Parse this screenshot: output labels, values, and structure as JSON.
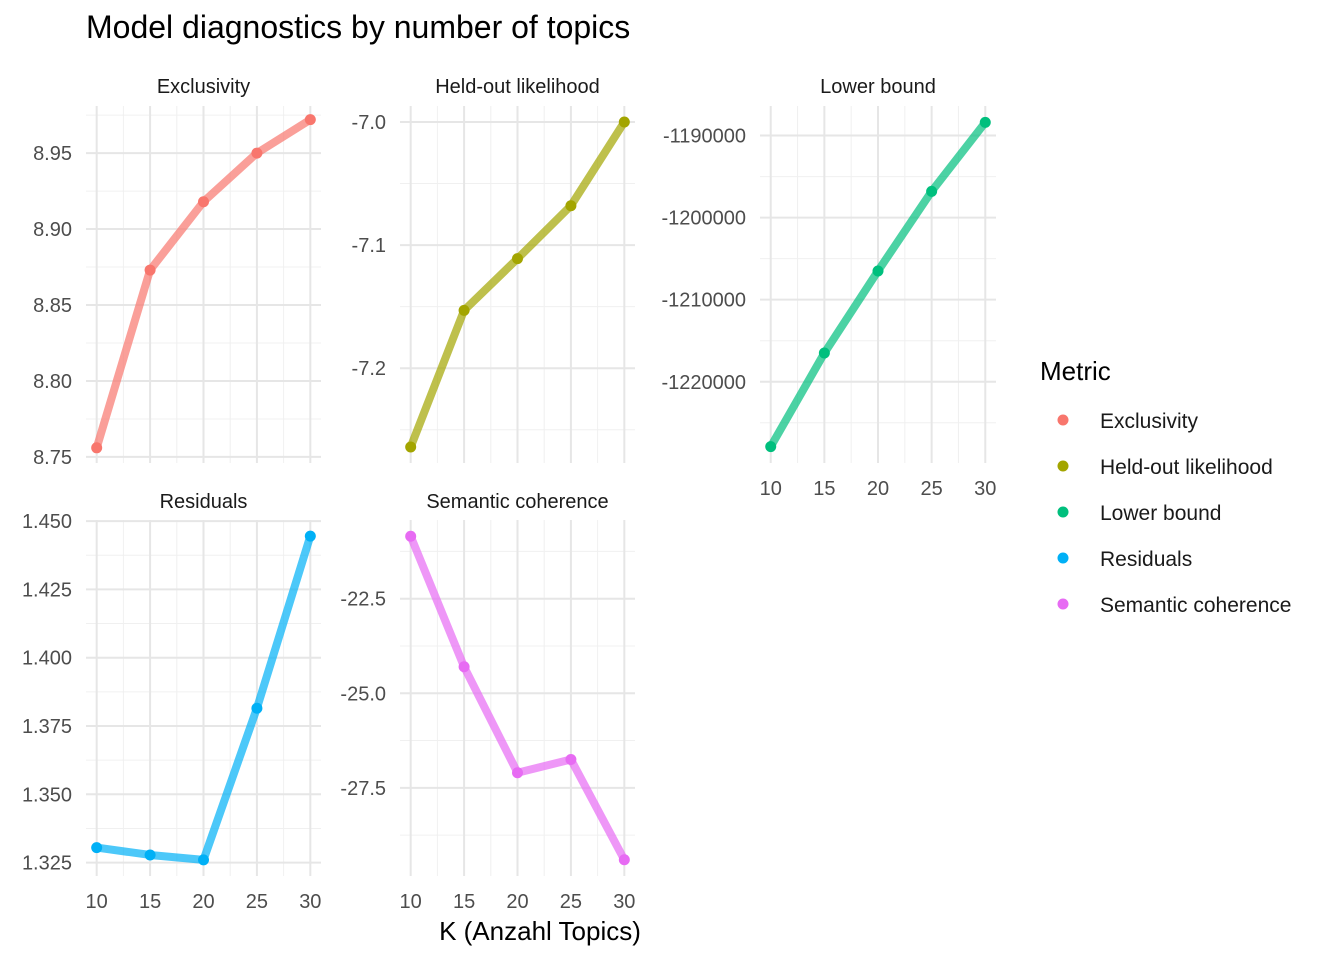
{
  "chart_data": {
    "type": "line",
    "title": "Model diagnostics by number of topics",
    "xlabel": "K (Anzahl Topics)",
    "ylabel": "",
    "x": [
      10,
      15,
      20,
      25,
      30
    ],
    "grid": true,
    "legend": {
      "title": "Metric",
      "placement": "right",
      "entries": [
        "Exclusivity",
        "Held-out likelihood",
        "Lower bound",
        "Residuals",
        "Semantic coherence"
      ]
    },
    "panels": [
      {
        "name": "Exclusivity",
        "color": "#F8766D",
        "values": [
          8.756,
          8.873,
          8.918,
          8.95,
          8.972
        ],
        "ylim": [
          8.746,
          8.981
        ],
        "yticks": [
          8.75,
          8.8,
          8.85,
          8.9,
          8.95
        ],
        "ytick_labels": [
          "8.75",
          "8.80",
          "8.85",
          "8.90",
          "8.95"
        ]
      },
      {
        "name": "Held-out likelihood",
        "color": "#A3A500",
        "values": [
          -7.264,
          -7.153,
          -7.111,
          -7.068,
          -7.0
        ],
        "ylim": [
          -7.277,
          -6.987
        ],
        "yticks": [
          -7.2,
          -7.1,
          -7.0
        ],
        "ytick_labels": [
          "-7.2",
          "-7.1",
          "-7.0"
        ]
      },
      {
        "name": "Lower bound",
        "color": "#00BF7D",
        "values": [
          -1227900,
          -1216500,
          -1206500,
          -1196800,
          -1188400
        ],
        "ylim": [
          -1229900,
          -1186400
        ],
        "yticks": [
          -1220000,
          -1210000,
          -1200000,
          -1190000
        ],
        "ytick_labels": [
          "-1220000",
          "-1210000",
          "-1200000",
          "-1190000"
        ]
      },
      {
        "name": "Residuals",
        "color": "#00B0F6",
        "values": [
          1.3305,
          1.3278,
          1.326,
          1.3815,
          1.4445
        ],
        "ylim": [
          1.3201,
          1.4504
        ],
        "yticks": [
          1.325,
          1.35,
          1.375,
          1.4,
          1.425,
          1.45
        ],
        "ytick_labels": [
          "1.325",
          "1.350",
          "1.375",
          "1.400",
          "1.425",
          "1.450"
        ]
      },
      {
        "name": "Semantic coherence",
        "color": "#E76BF3",
        "values": [
          -20.85,
          -24.3,
          -27.1,
          -26.75,
          -29.4
        ],
        "ylim": [
          -29.83,
          -20.42
        ],
        "yticks": [
          -27.5,
          -25.0,
          -22.5
        ],
        "ytick_labels": [
          "-27.5",
          "-25.0",
          "-22.5"
        ]
      }
    ]
  }
}
